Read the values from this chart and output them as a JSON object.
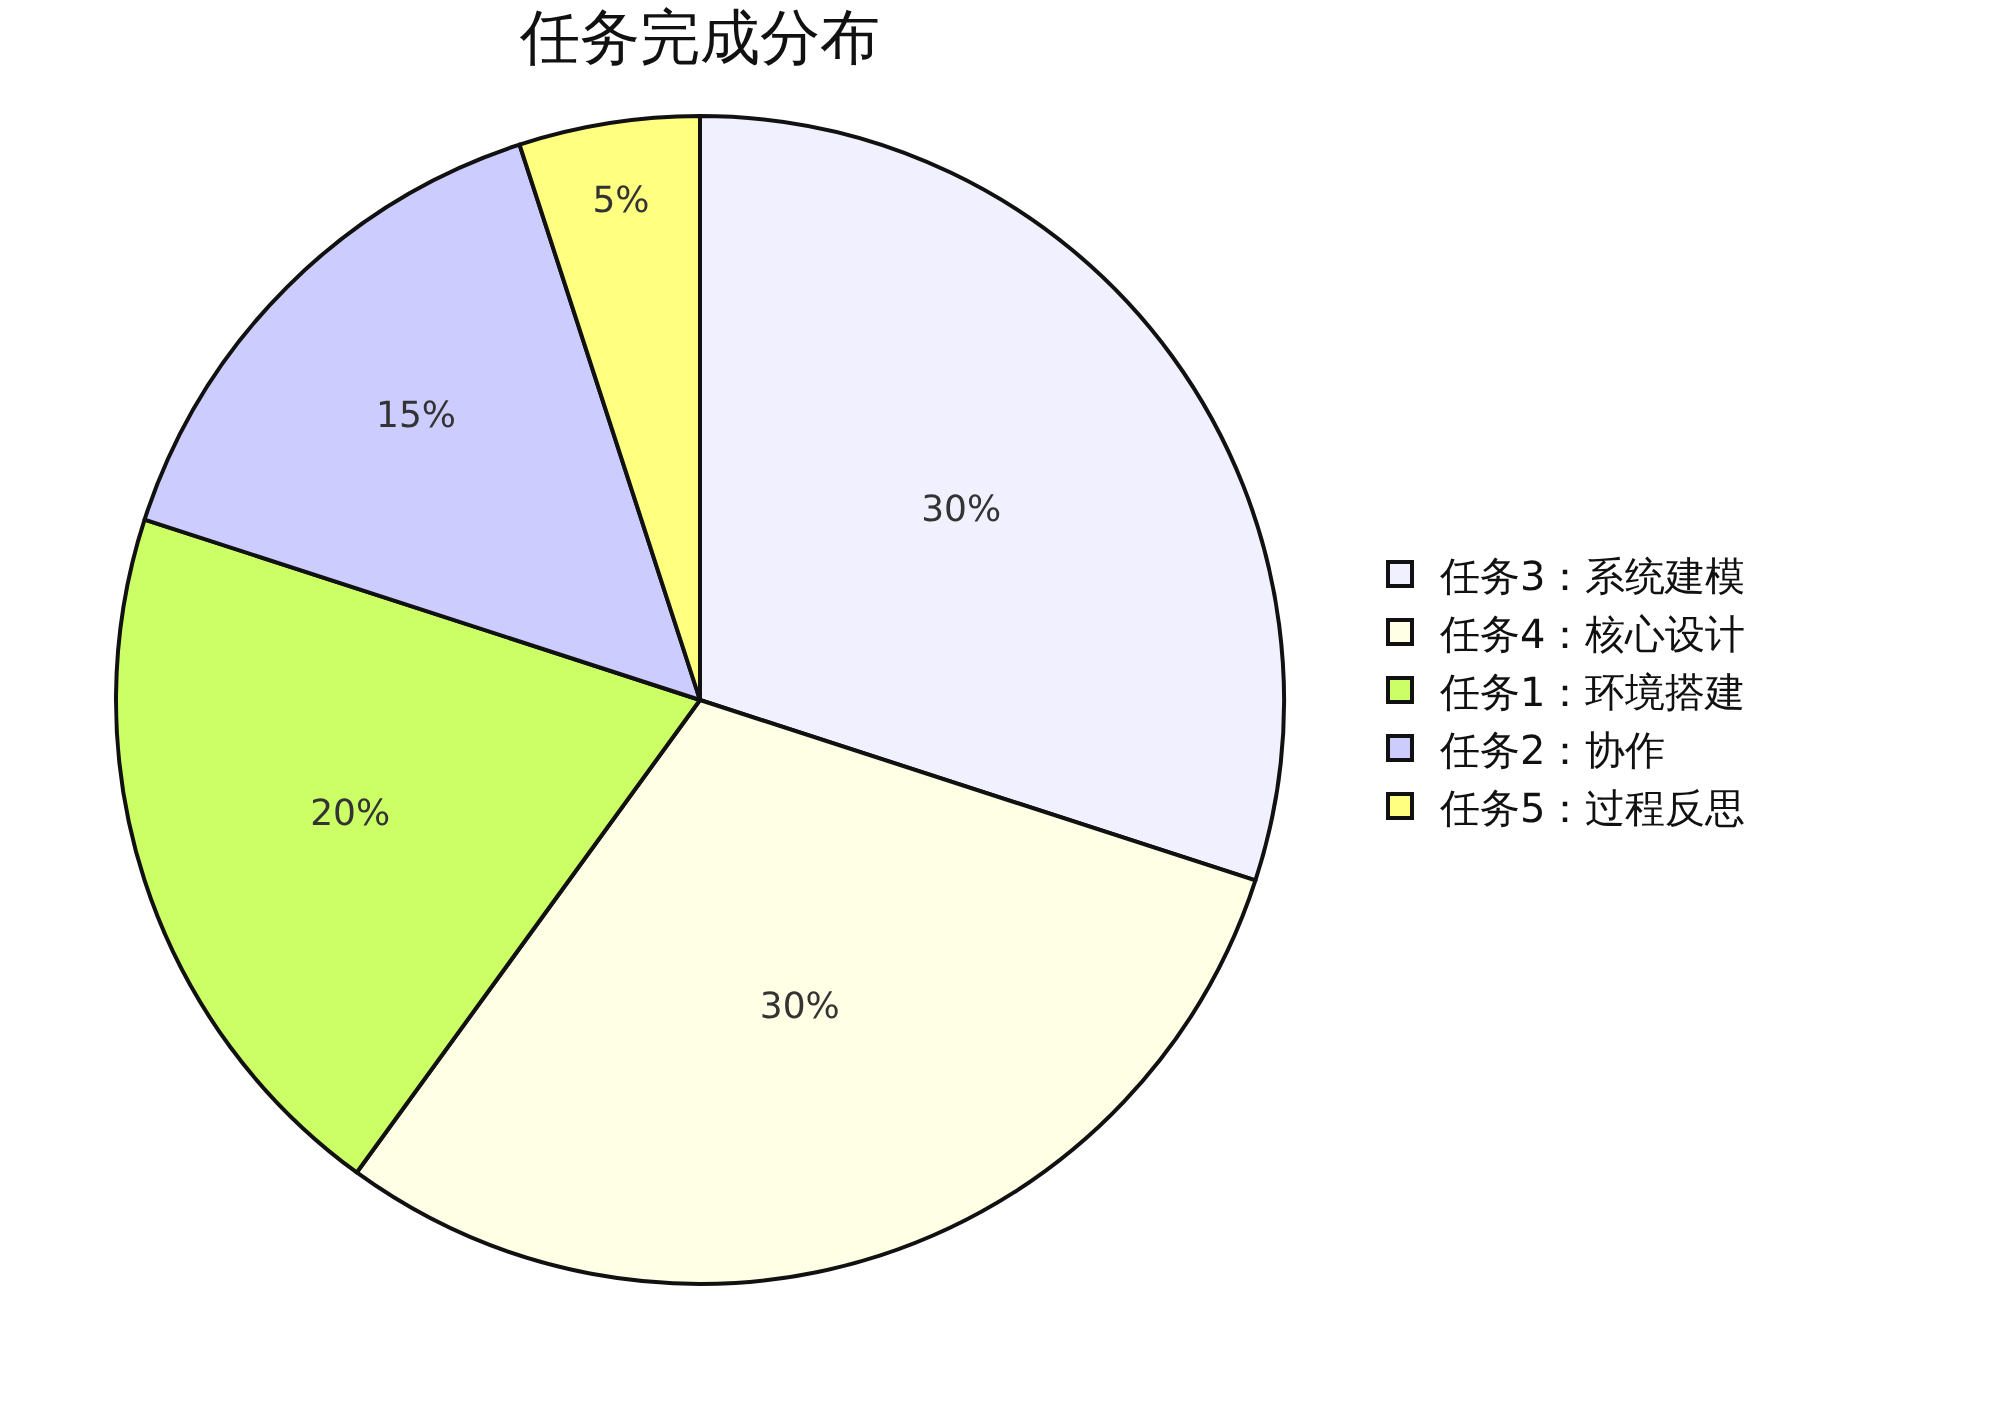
{
  "chart_data": {
    "type": "pie",
    "title": "任务完成分布",
    "categories": [
      "任务3：系统建模",
      "任务4：核心设计",
      "任务1：环境搭建",
      "任务2：协作",
      "任务5：过程反思"
    ],
    "values": [
      30,
      30,
      20,
      15,
      5
    ],
    "colors": [
      "#f0f0ff",
      "#ffffe6",
      "#ccff66",
      "#ccccff",
      "#ffff80"
    ],
    "value_labels": [
      "30%",
      "30%",
      "20%",
      "15%",
      "5%"
    ],
    "legend": "right"
  }
}
